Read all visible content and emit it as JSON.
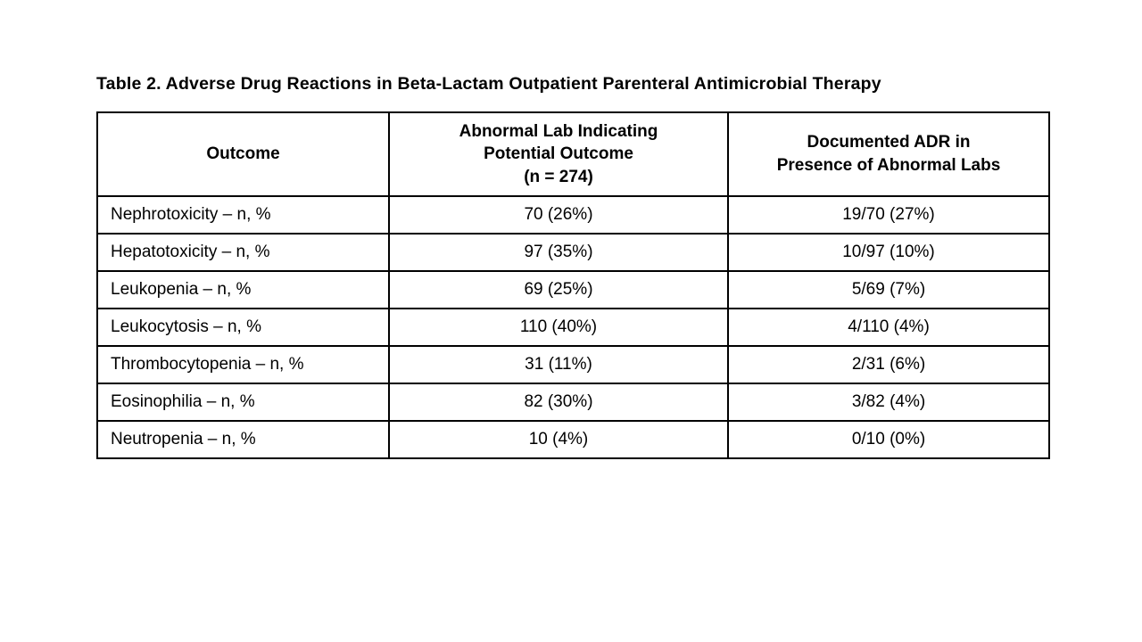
{
  "title": "Table 2. Adverse Drug Reactions in Beta-Lactam Outpatient Parenteral Antimicrobial Therapy",
  "table": {
    "headers": {
      "outcome": "Outcome",
      "abnormal_lab": "Abnormal Lab Indicating\nPotential Outcome\n(n = 274)",
      "documented_adr": "Documented ADR in\nPresence of Abnormal Labs"
    },
    "rows": [
      {
        "outcome": "Nephrotoxicity – n, %",
        "abnormal_lab": "70 (26%)",
        "documented_adr": "19/70 (27%)"
      },
      {
        "outcome": "Hepatotoxicity – n, %",
        "abnormal_lab": "97 (35%)",
        "documented_adr": "10/97 (10%)"
      },
      {
        "outcome": "Leukopenia – n, %",
        "abnormal_lab": "69 (25%)",
        "documented_adr": "5/69 (7%)"
      },
      {
        "outcome": "Leukocytosis – n, %",
        "abnormal_lab": "110 (40%)",
        "documented_adr": "4/110 (4%)"
      },
      {
        "outcome": "Thrombocytopenia – n, %",
        "abnormal_lab": "31 (11%)",
        "documented_adr": "2/31 (6%)"
      },
      {
        "outcome": "Eosinophilia – n, %",
        "abnormal_lab": "82 (30%)",
        "documented_adr": "3/82 (4%)"
      },
      {
        "outcome": "Neutropenia – n, %",
        "abnormal_lab": "10 (4%)",
        "documented_adr": "0/10 (0%)"
      }
    ]
  }
}
